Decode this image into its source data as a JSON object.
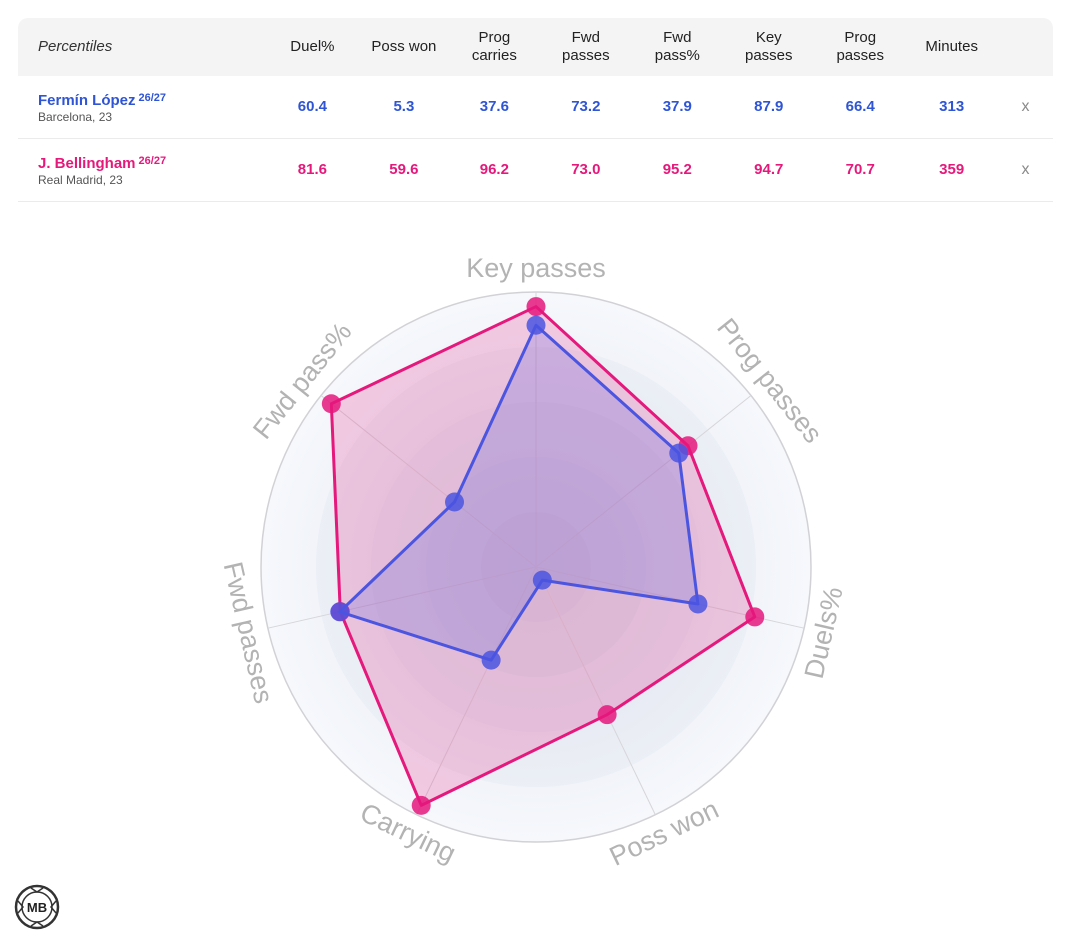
{
  "table": {
    "title": "Percentiles",
    "headers": {
      "duel": "Duel%",
      "poss": "Poss won",
      "carry_l1": "Prog",
      "carry_l2": "carries",
      "fwdp_l1": "Fwd",
      "fwdp_l2": "passes",
      "fwdpct_l1": "Fwd",
      "fwdpct_l2": "pass%",
      "key_l1": "Key",
      "key_l2": "passes",
      "prog_l1": "Prog",
      "prog_l2": "passes",
      "min": "Minutes"
    },
    "rows": [
      {
        "name": "Fermín López",
        "season": "26/27",
        "meta": "Barcelona, 23",
        "duel": "60.4",
        "poss": "5.3",
        "carry": "37.6",
        "fwdp": "73.2",
        "fwdpct": "37.9",
        "key": "87.9",
        "prog": "66.4",
        "min": "313",
        "remove": "x"
      },
      {
        "name": "J. Bellingham",
        "season": "26/27",
        "meta": "Real Madrid, 23",
        "duel": "81.6",
        "poss": "59.6",
        "carry": "96.2",
        "fwdp": "73.0",
        "fwdpct": "95.2",
        "key": "94.7",
        "prog": "70.7",
        "min": "359",
        "remove": "x"
      }
    ]
  },
  "chart_data": {
    "type": "radar",
    "axes": [
      "Key passes",
      "Prog passes",
      "Duels%",
      "Poss won",
      "Carrying",
      "Fwd passes",
      "Fwd pass%"
    ],
    "range": [
      0,
      100
    ],
    "series": [
      {
        "name": "J. Bellingham",
        "color": "#e5187c",
        "values": [
          94.7,
          70.7,
          81.6,
          59.6,
          96.2,
          73.0,
          95.2
        ]
      },
      {
        "name": "Fermín López",
        "color": "#4b55e0",
        "values": [
          87.9,
          66.4,
          60.4,
          5.3,
          37.6,
          73.2,
          37.9
        ]
      }
    ]
  },
  "logo": {
    "text": "MB"
  }
}
